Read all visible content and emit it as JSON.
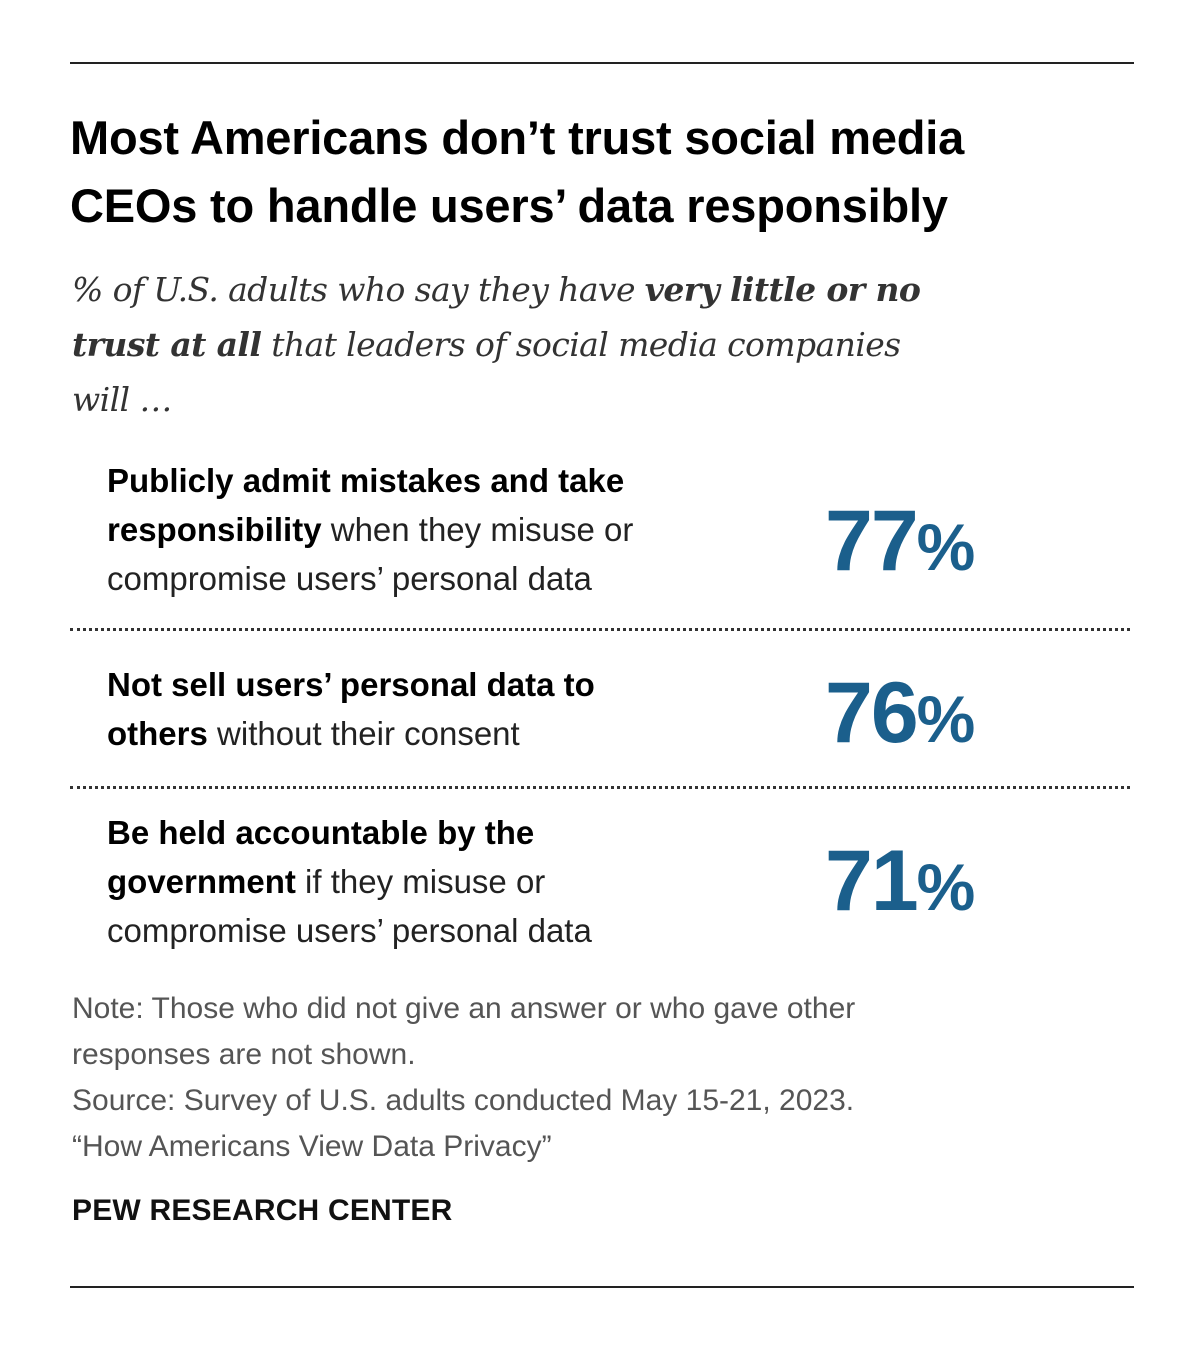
{
  "title": {
    "line1": "Most Americans don’t trust social media",
    "line2": "CEOs to handle users’ data responsibly"
  },
  "subtitle": {
    "line1_pre": "% of U.S. adults who say they have ",
    "line1_bold": "very little or no",
    "line2_bold": "trust at all",
    "line2_post": " that leaders of social media companies",
    "line3": "will …"
  },
  "chart_data": {
    "type": "table",
    "title": "Most Americans don’t trust social media CEOs to handle users’ data responsibly",
    "subtitle": "% of U.S. adults who say they have very little or no trust at all that leaders of social media companies will …",
    "categories": [
      "Publicly admit mistakes and take responsibility when they misuse or compromise users’ personal data",
      "Not sell users’ personal data to others without their consent",
      "Be held accountable by the government if they misuse or compromise users’ personal data"
    ],
    "values": [
      77,
      76,
      71
    ],
    "unit": "%",
    "accent_color": "#1b5f8c"
  },
  "items": [
    {
      "line1_bold": "Publicly admit mistakes and take",
      "line2_bold": "responsibility",
      "line2_post": " when they misuse or",
      "line3": "compromise users’ personal data",
      "value": "77",
      "pct": "%"
    },
    {
      "line1_bold": "Not sell users’ personal data to",
      "line2_bold": "others",
      "line2_post": " without their consent",
      "value": "76",
      "pct": "%"
    },
    {
      "line1_bold": "Be held accountable by the",
      "line2_bold": "government",
      "line2_post": " if they misuse or",
      "line3": "compromise users’ personal data",
      "value": "71",
      "pct": "%"
    }
  ],
  "notes": {
    "note_line1": "Note: Those who did not give an answer or who gave other",
    "note_line2": "responses are not shown.",
    "source_line1": "Source: Survey of U.S. adults conducted May 15-21, 2023.",
    "source_line2": "“How Americans View Data Privacy”"
  },
  "brand": "PEW RESEARCH CENTER"
}
